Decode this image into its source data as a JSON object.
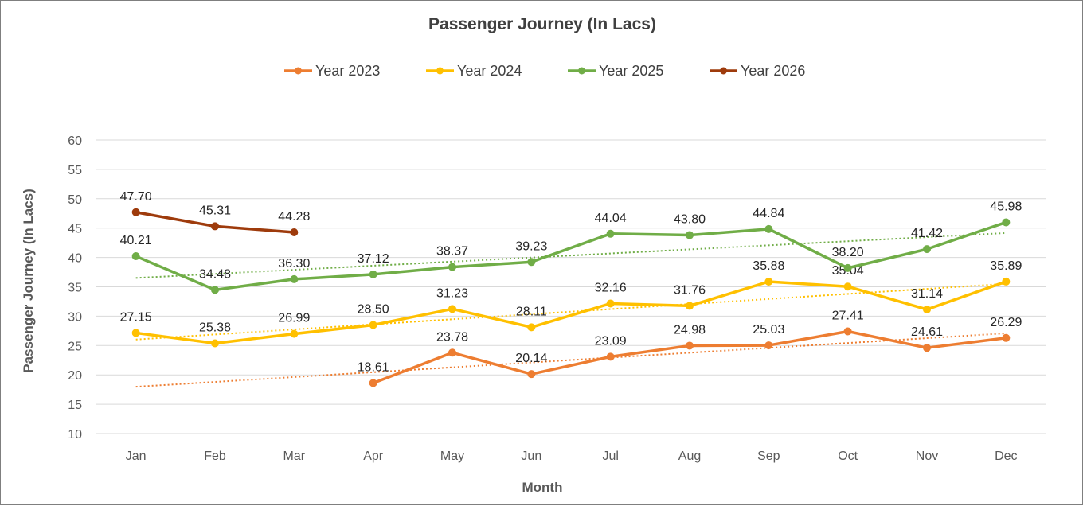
{
  "chart_data": {
    "type": "line",
    "title": "Passenger Journey (In Lacs)",
    "xlabel": "Month",
    "ylabel": "Passenger Journey (In Lacs)",
    "ylim": [
      10,
      60
    ],
    "yticks": [
      10,
      15,
      20,
      25,
      30,
      35,
      40,
      45,
      50,
      55,
      60
    ],
    "grid": true,
    "legend_position": "top",
    "categories": [
      "Jan",
      "Feb",
      "Mar",
      "Apr",
      "May",
      "Jun",
      "Jul",
      "Aug",
      "Sep",
      "Oct",
      "Nov",
      "Dec"
    ],
    "series": [
      {
        "name": "Year 2023",
        "color": "#ED7D31",
        "trendline": true,
        "values": [
          null,
          null,
          null,
          18.61,
          23.78,
          20.14,
          23.09,
          24.98,
          25.03,
          27.41,
          24.61,
          26.29
        ],
        "labels": [
          "",
          "",
          "",
          "18.61",
          "23.78",
          "20.14",
          "23.09",
          "24.98",
          "25.03",
          "27.41",
          "24.61",
          "26.29"
        ]
      },
      {
        "name": "Year 2024",
        "color": "#FFC000",
        "trendline": true,
        "values": [
          27.15,
          25.38,
          26.99,
          28.5,
          31.23,
          28.11,
          32.16,
          31.76,
          35.88,
          35.04,
          31.14,
          35.89
        ],
        "labels": [
          "27.15",
          "25.38",
          "26.99",
          "28.50",
          "31.23",
          "28.11",
          "32.16",
          "31.76",
          "35.88",
          "35.04",
          "31.14",
          "35.89"
        ]
      },
      {
        "name": "Year 2025",
        "color": "#70AD47",
        "trendline": true,
        "values": [
          40.21,
          34.48,
          36.3,
          37.12,
          38.37,
          39.23,
          44.04,
          43.8,
          44.84,
          38.2,
          41.42,
          45.98
        ],
        "labels": [
          "40.21",
          "34.48",
          "36.30",
          "37.12",
          "38.37",
          "39.23",
          "44.04",
          "43.80",
          "44.84",
          "38.20",
          "41.42",
          "45.98"
        ]
      },
      {
        "name": "Year 2026",
        "color": "#9E3B0C",
        "trendline": false,
        "values": [
          47.7,
          45.31,
          44.28,
          null,
          null,
          null,
          null,
          null,
          null,
          null,
          null,
          null
        ],
        "labels": [
          "47.70",
          "45.31",
          "44.28",
          "",
          "",
          "",
          "",
          "",
          "",
          "",
          "",
          ""
        ]
      }
    ]
  }
}
